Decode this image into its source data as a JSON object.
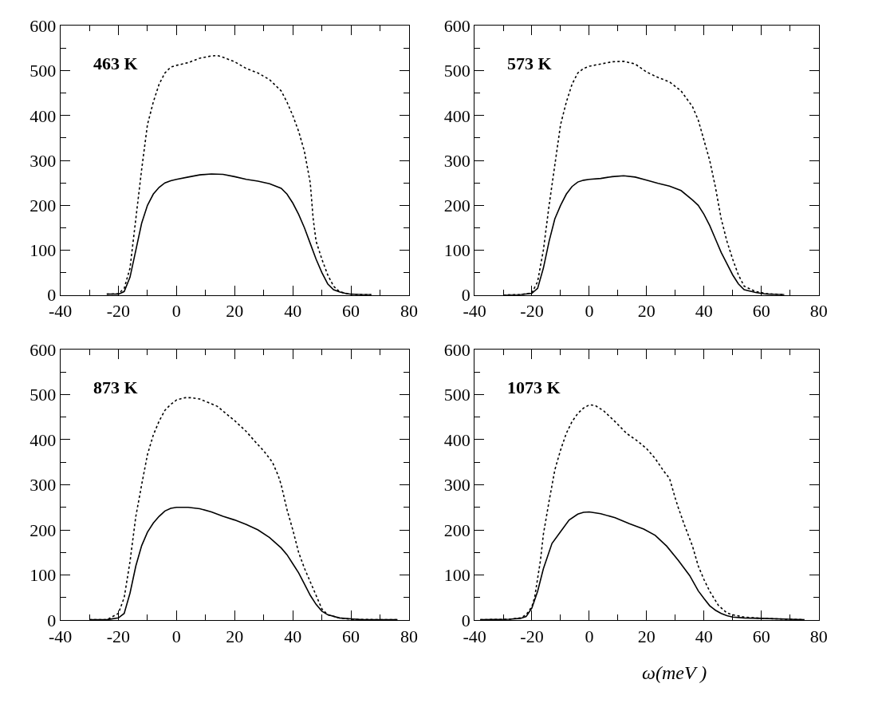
{
  "chart_data": [
    {
      "type": "line",
      "annotations": [
        "463 K"
      ],
      "xlim": [
        -40,
        80
      ],
      "ylim": [
        0,
        600
      ],
      "xticks": [
        -40,
        -20,
        0,
        20,
        40,
        60,
        80,
        {
          "value": -30,
          "label": null
        },
        {
          "value": -10,
          "label": null
        },
        {
          "value": 10,
          "label": null
        },
        {
          "value": 30,
          "label": null
        },
        {
          "value": 50,
          "label": null
        },
        {
          "value": 70,
          "label": null
        }
      ],
      "yticks": [
        0,
        100,
        200,
        300,
        400,
        500,
        600,
        {
          "value": 50,
          "label": null
        },
        {
          "value": 150,
          "label": null
        },
        {
          "value": 250,
          "label": null
        },
        {
          "value": 350,
          "label": null
        },
        {
          "value": 450,
          "label": null
        },
        {
          "value": 550,
          "label": null
        }
      ],
      "marker": "none",
      "series": [
        {
          "color": "#000000",
          "line_style": "solid",
          "x": [
            -24,
            -20,
            -18,
            -16,
            -14,
            -12,
            -10,
            -8,
            -6,
            -4,
            -2,
            0,
            4,
            8,
            12,
            16,
            20,
            24,
            28,
            32,
            36,
            38,
            40,
            42,
            44,
            46,
            48,
            50,
            52,
            54,
            56,
            58,
            60,
            64,
            67
          ],
          "values": [
            2,
            2,
            8,
            40,
            100,
            160,
            200,
            225,
            240,
            250,
            255,
            258,
            263,
            268,
            270,
            269,
            264,
            258,
            254,
            248,
            238,
            225,
            205,
            180,
            150,
            115,
            80,
            50,
            25,
            12,
            7,
            4,
            2,
            1,
            1
          ]
        },
        {
          "color": "#000000",
          "line_style": "dotted",
          "x": [
            -24,
            -20,
            -18,
            -16,
            -14,
            -12,
            -10,
            -8,
            -6,
            -4,
            -2,
            0,
            4,
            8,
            12,
            14,
            16,
            20,
            24,
            28,
            32,
            36,
            38,
            40,
            42,
            44,
            46,
            47,
            48,
            50,
            52,
            54,
            56,
            58,
            60,
            64,
            67
          ],
          "values": [
            2,
            3,
            15,
            60,
            170,
            280,
            380,
            430,
            470,
            495,
            508,
            512,
            518,
            528,
            533,
            534,
            530,
            520,
            505,
            495,
            480,
            455,
            430,
            400,
            365,
            320,
            250,
            170,
            120,
            80,
            45,
            20,
            8,
            4,
            2,
            1,
            1
          ]
        }
      ]
    },
    {
      "type": "line",
      "annotations": [
        "573 K"
      ],
      "xlim": [
        -40,
        80
      ],
      "ylim": [
        0,
        600
      ],
      "xticks": [
        -40,
        -20,
        0,
        20,
        40,
        60,
        80,
        {
          "value": -30,
          "label": null
        },
        {
          "value": -10,
          "label": null
        },
        {
          "value": 10,
          "label": null
        },
        {
          "value": 30,
          "label": null
        },
        {
          "value": 50,
          "label": null
        },
        {
          "value": 70,
          "label": null
        }
      ],
      "yticks": [
        0,
        100,
        200,
        300,
        400,
        500,
        600,
        {
          "value": 50,
          "label": null
        },
        {
          "value": 150,
          "label": null
        },
        {
          "value": 250,
          "label": null
        },
        {
          "value": 350,
          "label": null
        },
        {
          "value": 450,
          "label": null
        },
        {
          "value": 550,
          "label": null
        }
      ],
      "marker": "none",
      "series": [
        {
          "color": "#000000",
          "line_style": "solid",
          "x": [
            -30,
            -24,
            -20,
            -18,
            -16,
            -14,
            -12,
            -10,
            -8,
            -6,
            -4,
            -2,
            0,
            4,
            8,
            12,
            16,
            20,
            24,
            28,
            32,
            36,
            38,
            40,
            42,
            44,
            46,
            48,
            50,
            52,
            54,
            58,
            62,
            68
          ],
          "values": [
            0,
            1,
            4,
            15,
            60,
            120,
            170,
            200,
            225,
            242,
            252,
            256,
            258,
            260,
            264,
            266,
            263,
            256,
            249,
            243,
            233,
            212,
            200,
            180,
            155,
            125,
            95,
            70,
            45,
            25,
            12,
            6,
            2,
            1
          ]
        },
        {
          "color": "#000000",
          "line_style": "dotted",
          "x": [
            -30,
            -24,
            -20,
            -18,
            -16,
            -14,
            -12,
            -10,
            -8,
            -6,
            -4,
            -2,
            0,
            4,
            8,
            12,
            16,
            20,
            24,
            28,
            32,
            36,
            38,
            40,
            42,
            44,
            46,
            48,
            50,
            52,
            54,
            58,
            62,
            68
          ],
          "values": [
            0,
            1,
            5,
            30,
            100,
            200,
            290,
            380,
            430,
            470,
            495,
            505,
            510,
            515,
            520,
            521,
            515,
            497,
            485,
            475,
            455,
            420,
            390,
            345,
            300,
            240,
            170,
            120,
            80,
            45,
            20,
            8,
            3,
            1
          ]
        }
      ]
    },
    {
      "type": "line",
      "annotations": [
        "873 K"
      ],
      "xlim": [
        -40,
        80
      ],
      "ylim": [
        0,
        600
      ],
      "xticks": [
        -40,
        -20,
        0,
        20,
        40,
        60,
        80,
        {
          "value": -30,
          "label": null
        },
        {
          "value": -10,
          "label": null
        },
        {
          "value": 10,
          "label": null
        },
        {
          "value": 30,
          "label": null
        },
        {
          "value": 50,
          "label": null
        },
        {
          "value": 70,
          "label": null
        }
      ],
      "yticks": [
        0,
        100,
        200,
        300,
        400,
        500,
        600,
        {
          "value": 50,
          "label": null
        },
        {
          "value": 150,
          "label": null
        },
        {
          "value": 250,
          "label": null
        },
        {
          "value": 350,
          "label": null
        },
        {
          "value": 450,
          "label": null
        },
        {
          "value": 550,
          "label": null
        }
      ],
      "marker": "none",
      "series": [
        {
          "color": "#000000",
          "line_style": "solid",
          "x": [
            -30,
            -24,
            -20,
            -18,
            -16,
            -14,
            -12,
            -10,
            -8,
            -6,
            -4,
            -2,
            0,
            4,
            8,
            12,
            16,
            20,
            24,
            28,
            32,
            36,
            38,
            40,
            42,
            44,
            46,
            48,
            50,
            52,
            56,
            60,
            64,
            70,
            76
          ],
          "values": [
            1,
            1,
            5,
            15,
            60,
            120,
            165,
            195,
            215,
            230,
            242,
            248,
            250,
            250,
            247,
            240,
            230,
            222,
            212,
            200,
            183,
            160,
            145,
            125,
            105,
            80,
            55,
            35,
            20,
            12,
            5,
            3,
            1,
            1,
            1
          ]
        },
        {
          "color": "#000000",
          "line_style": "dotted",
          "x": [
            -30,
            -24,
            -20,
            -18,
            -16,
            -14,
            -12,
            -10,
            -8,
            -6,
            -4,
            -2,
            0,
            3,
            5,
            8,
            11,
            14,
            17,
            20,
            24,
            27,
            30,
            33,
            35,
            36,
            38,
            40,
            42,
            44,
            46,
            48,
            50,
            52,
            56,
            60,
            70,
            76
          ],
          "values": [
            1,
            1,
            15,
            50,
            130,
            230,
            300,
            367,
            410,
            441,
            465,
            478,
            488,
            493,
            493,
            490,
            482,
            474,
            458,
            442,
            418,
            396,
            375,
            350,
            320,
            300,
            245,
            200,
            150,
            115,
            85,
            55,
            25,
            12,
            5,
            2,
            1,
            1
          ]
        }
      ]
    },
    {
      "type": "line",
      "annotations": [
        "1073 K"
      ],
      "xlabel": "ω(meV )",
      "xlim": [
        -40,
        80
      ],
      "ylim": [
        0,
        600
      ],
      "xticks": [
        -40,
        -20,
        0,
        20,
        40,
        60,
        80,
        {
          "value": -30,
          "label": null
        },
        {
          "value": -10,
          "label": null
        },
        {
          "value": 10,
          "label": null
        },
        {
          "value": 30,
          "label": null
        },
        {
          "value": 50,
          "label": null
        },
        {
          "value": 70,
          "label": null
        }
      ],
      "yticks": [
        0,
        100,
        200,
        300,
        400,
        500,
        600,
        {
          "value": 50,
          "label": null
        },
        {
          "value": 150,
          "label": null
        },
        {
          "value": 250,
          "label": null
        },
        {
          "value": 350,
          "label": null
        },
        {
          "value": 450,
          "label": null
        },
        {
          "value": 550,
          "label": null
        }
      ],
      "marker": "none",
      "series": [
        {
          "color": "#000000",
          "line_style": "solid",
          "x": [
            -38,
            -28,
            -24,
            -22,
            -20,
            -18,
            -16,
            -13,
            -10,
            -7,
            -4,
            -2,
            0,
            4,
            9,
            14,
            19,
            23,
            27,
            31,
            35,
            38,
            40,
            42,
            44,
            46,
            48,
            50,
            54,
            60,
            70,
            75
          ],
          "values": [
            1,
            2,
            4,
            8,
            27,
            64,
            114,
            170,
            196,
            222,
            235,
            239,
            240,
            236,
            227,
            214,
            202,
            188,
            164,
            133,
            99,
            65,
            48,
            32,
            22,
            15,
            10,
            7,
            5,
            4,
            2,
            1
          ]
        },
        {
          "color": "#000000",
          "line_style": "dotted",
          "x": [
            -38,
            -28,
            -24,
            -22,
            -20,
            -19,
            -17,
            -16,
            -14,
            -12,
            -10,
            -8,
            -6,
            -4,
            -2,
            0,
            2,
            5,
            9,
            13,
            17,
            20,
            23,
            26,
            28,
            30,
            31,
            33,
            36,
            38,
            40,
            42,
            45,
            48,
            50,
            54,
            60,
            70,
            75
          ],
          "values": [
            1,
            2,
            5,
            12,
            30,
            52,
            133,
            190,
            264,
            333,
            377,
            414,
            440,
            458,
            470,
            477,
            476,
            464,
            440,
            414,
            396,
            380,
            358,
            330,
            314,
            270,
            250,
            214,
            164,
            120,
            90,
            64,
            33,
            16,
            12,
            7,
            4,
            2,
            1
          ]
        }
      ]
    }
  ]
}
